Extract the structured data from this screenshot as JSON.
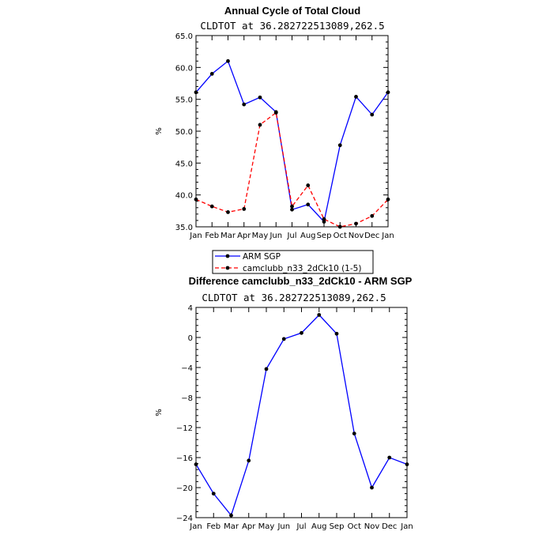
{
  "chart_data": [
    {
      "type": "line",
      "title": "Annual Cycle of Total Cloud",
      "subtitle": "CLDTOT at 36.282722513089,262.5",
      "xlabel": "",
      "ylabel": "%",
      "categories": [
        "Jan",
        "Feb",
        "Mar",
        "Apr",
        "May",
        "Jun",
        "Jul",
        "Aug",
        "Sep",
        "Oct",
        "Nov",
        "Dec",
        "Jan"
      ],
      "ylim": [
        35.0,
        65.0
      ],
      "yticks": [
        35.0,
        40.0,
        45.0,
        50.0,
        55.0,
        60.0,
        65.0
      ],
      "ytick_labels": [
        "35.0",
        "40.0",
        "45.0",
        "50.0",
        "55.0",
        "60.0",
        "65.0"
      ],
      "series": [
        {
          "name": "ARM SGP",
          "color": "#0000ff",
          "dash": "solid",
          "values": [
            56.1,
            59.0,
            61.0,
            54.2,
            55.3,
            53.0,
            37.7,
            38.5,
            35.8,
            47.8,
            55.4,
            52.6,
            56.1
          ]
        },
        {
          "name": "camclubb_n33_2dCk10 (1-5)",
          "color": "#ff0000",
          "dash": "dashed",
          "values": [
            39.3,
            38.2,
            37.3,
            37.8,
            51.0,
            52.9,
            38.2,
            41.5,
            36.2,
            35.0,
            35.5,
            36.7,
            39.3
          ]
        }
      ],
      "legend": "below"
    },
    {
      "type": "line",
      "title": "Difference camclubb_n33_2dCk10 - ARM SGP",
      "subtitle": "CLDTOT at 36.282722513089,262.5",
      "xlabel": "",
      "ylabel": "%",
      "categories": [
        "Jan",
        "Feb",
        "Mar",
        "Apr",
        "May",
        "Jun",
        "Jul",
        "Aug",
        "Sep",
        "Oct",
        "Nov",
        "Dec",
        "Jan"
      ],
      "ylim": [
        -24,
        4
      ],
      "yticks": [
        -24,
        -20,
        -16,
        -12,
        -8,
        -4,
        0,
        4
      ],
      "ytick_labels": [
        "−24",
        "−20",
        "−16",
        "−12",
        "−8",
        "−4",
        "0",
        "4"
      ],
      "series": [
        {
          "name": "",
          "color": "#0000ff",
          "dash": "solid",
          "values": [
            -16.9,
            -20.8,
            -23.7,
            -16.4,
            -4.2,
            -0.2,
            0.6,
            3.0,
            0.5,
            -12.8,
            -20.0,
            -16.0,
            -16.9
          ]
        }
      ]
    }
  ]
}
